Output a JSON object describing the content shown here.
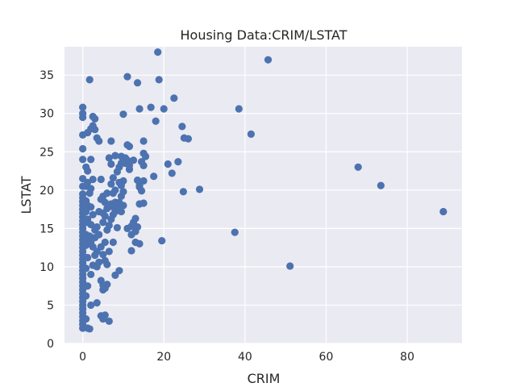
{
  "chart_data": {
    "type": "scatter",
    "title": "Housing Data:CRIM/LSTAT",
    "xlabel": "CRIM",
    "ylabel": "LSTAT",
    "xlim": [
      -4.5,
      93.5
    ],
    "ylim": [
      0,
      38.7
    ],
    "xticks": [
      0,
      20,
      40,
      60,
      80
    ],
    "yticks": [
      0,
      5,
      10,
      15,
      20,
      25,
      30,
      35
    ],
    "grid": true,
    "colors": {
      "plot_background": "#eaeaf2",
      "grid": "#ffffff",
      "marker": "#4c72b0"
    },
    "points": [
      [
        0.0,
        2.0
      ],
      [
        0.0,
        2.5
      ],
      [
        0.0,
        3.0
      ],
      [
        0.0,
        3.5
      ],
      [
        0.0,
        4.0
      ],
      [
        0.0,
        4.5
      ],
      [
        0.0,
        5.0
      ],
      [
        0.0,
        5.5
      ],
      [
        0.0,
        6.0
      ],
      [
        0.0,
        6.5
      ],
      [
        0.0,
        7.0
      ],
      [
        0.0,
        7.5
      ],
      [
        0.0,
        8.0
      ],
      [
        0.0,
        8.5
      ],
      [
        0.0,
        9.0
      ],
      [
        0.0,
        9.5
      ],
      [
        0.0,
        10.0
      ],
      [
        0.0,
        10.5
      ],
      [
        0.0,
        11.0
      ],
      [
        0.0,
        11.5
      ],
      [
        0.0,
        12.0
      ],
      [
        0.0,
        12.5
      ],
      [
        0.0,
        13.0
      ],
      [
        0.0,
        13.5
      ],
      [
        0.0,
        14.0
      ],
      [
        0.0,
        14.5
      ],
      [
        0.0,
        15.0
      ],
      [
        0.0,
        15.5
      ],
      [
        0.0,
        16.0
      ],
      [
        0.0,
        16.5
      ],
      [
        0.0,
        17.0
      ],
      [
        0.0,
        17.5
      ],
      [
        0.0,
        18.0
      ],
      [
        0.0,
        18.5
      ],
      [
        0.0,
        19.0
      ],
      [
        0.0,
        19.5
      ],
      [
        0.0,
        20.5
      ],
      [
        0.0,
        21.5
      ],
      [
        0.0,
        24.0
      ],
      [
        0.0,
        25.4
      ],
      [
        0.0,
        27.2
      ],
      [
        0.0,
        29.5
      ],
      [
        0.0,
        30.0
      ],
      [
        0.0,
        30.8
      ],
      [
        0.8,
        3.2
      ],
      [
        0.8,
        6.2
      ],
      [
        0.8,
        9.8
      ],
      [
        0.8,
        12.8
      ],
      [
        0.8,
        14.2
      ],
      [
        0.8,
        15.8
      ],
      [
        0.8,
        17.2
      ],
      [
        0.8,
        18.6
      ],
      [
        0.8,
        20.5
      ],
      [
        0.8,
        23.0
      ],
      [
        1.2,
        2.0
      ],
      [
        1.2,
        7.5
      ],
      [
        1.2,
        11.2
      ],
      [
        1.2,
        13.6
      ],
      [
        1.2,
        16.2
      ],
      [
        1.2,
        18.0
      ],
      [
        1.2,
        21.0
      ],
      [
        1.2,
        22.5
      ],
      [
        1.2,
        27.5
      ],
      [
        1.7,
        1.9
      ],
      [
        1.7,
        34.4
      ],
      [
        1.7,
        14.0
      ],
      [
        1.7,
        19.6
      ],
      [
        2.0,
        5.0
      ],
      [
        2.0,
        9.0
      ],
      [
        2.0,
        13.2
      ],
      [
        2.0,
        15.5
      ],
      [
        2.0,
        17.8
      ],
      [
        2.0,
        20.2
      ],
      [
        2.0,
        24.0
      ],
      [
        2.0,
        28.0
      ],
      [
        2.5,
        28.4
      ],
      [
        2.5,
        29.6
      ],
      [
        2.5,
        21.4
      ],
      [
        2.5,
        16.8
      ],
      [
        2.5,
        12.6
      ],
      [
        2.5,
        10.2
      ],
      [
        3.0,
        29.3
      ],
      [
        3.0,
        27.9
      ],
      [
        3.0,
        14.8
      ],
      [
        3.0,
        11.5
      ],
      [
        3.0,
        13.8
      ],
      [
        3.5,
        26.8
      ],
      [
        3.5,
        12.0
      ],
      [
        3.5,
        15.2
      ],
      [
        3.5,
        10.0
      ],
      [
        3.5,
        5.3
      ],
      [
        4.0,
        26.4
      ],
      [
        4.0,
        14.2
      ],
      [
        4.0,
        17.2
      ],
      [
        4.0,
        10.6
      ],
      [
        4.5,
        21.4
      ],
      [
        4.5,
        18.8
      ],
      [
        4.5,
        12.6
      ],
      [
        4.5,
        8.2
      ],
      [
        4.5,
        3.6
      ],
      [
        5.0,
        7.6
      ],
      [
        5.0,
        7.0
      ],
      [
        5.0,
        15.8
      ],
      [
        5.0,
        19.2
      ],
      [
        5.0,
        17.0
      ],
      [
        5.0,
        11.6
      ],
      [
        5.0,
        3.2
      ],
      [
        5.5,
        16.6
      ],
      [
        5.5,
        18.4
      ],
      [
        5.5,
        13.2
      ],
      [
        5.5,
        10.8
      ],
      [
        5.5,
        7.2
      ],
      [
        5.5,
        3.7
      ],
      [
        6.0,
        14.8
      ],
      [
        6.0,
        17.6
      ],
      [
        6.0,
        19.6
      ],
      [
        6.0,
        10.3
      ],
      [
        6.0,
        7.7
      ],
      [
        6.5,
        24.2
      ],
      [
        6.5,
        15.4
      ],
      [
        6.5,
        12.0
      ],
      [
        6.5,
        2.9
      ],
      [
        7.0,
        18.2
      ],
      [
        7.0,
        20.8
      ],
      [
        7.0,
        16.2
      ],
      [
        7.0,
        23.4
      ],
      [
        7.0,
        26.4
      ],
      [
        7.5,
        21.6
      ],
      [
        7.5,
        19.6
      ],
      [
        7.5,
        17.8
      ],
      [
        7.5,
        16.8
      ],
      [
        7.5,
        13.2
      ],
      [
        8.0,
        24.5
      ],
      [
        8.0,
        17.2
      ],
      [
        8.0,
        20.0
      ],
      [
        8.0,
        18.4
      ],
      [
        8.0,
        8.9
      ],
      [
        8.5,
        17.6
      ],
      [
        8.5,
        15.1
      ],
      [
        8.5,
        22.4
      ],
      [
        9.0,
        23.0
      ],
      [
        9.0,
        21.0
      ],
      [
        9.0,
        18.4
      ],
      [
        9.0,
        9.5
      ],
      [
        9.5,
        24.4
      ],
      [
        9.5,
        20.6
      ],
      [
        9.5,
        19.2
      ],
      [
        9.5,
        17.2
      ],
      [
        9.5,
        23.5
      ],
      [
        10.0,
        29.9
      ],
      [
        10.0,
        21.2
      ],
      [
        10.0,
        19.8
      ],
      [
        10.0,
        18.0
      ],
      [
        10.5,
        23.5
      ],
      [
        10.5,
        24.2
      ],
      [
        11.0,
        34.8
      ],
      [
        11.0,
        25.9
      ],
      [
        11.0,
        23.9
      ],
      [
        11.0,
        15.0
      ],
      [
        11.5,
        22.7
      ],
      [
        11.5,
        23.2
      ],
      [
        11.5,
        25.7
      ],
      [
        12.0,
        12.1
      ],
      [
        12.0,
        14.2
      ],
      [
        12.0,
        15.3
      ],
      [
        12.5,
        23.9
      ],
      [
        12.5,
        15.8
      ],
      [
        13.0,
        16.3
      ],
      [
        13.0,
        14.6
      ],
      [
        13.0,
        13.2
      ],
      [
        13.5,
        34.0
      ],
      [
        13.5,
        15.2
      ],
      [
        13.5,
        21.3
      ],
      [
        14.0,
        30.6
      ],
      [
        14.0,
        20.4
      ],
      [
        14.0,
        20.6
      ],
      [
        14.0,
        18.2
      ],
      [
        14.0,
        13.0
      ],
      [
        14.5,
        19.9
      ],
      [
        14.5,
        23.7
      ],
      [
        15.0,
        26.4
      ],
      [
        15.0,
        24.8
      ],
      [
        15.0,
        23.2
      ],
      [
        15.0,
        21.2
      ],
      [
        15.0,
        18.3
      ],
      [
        15.5,
        24.4
      ],
      [
        16.8,
        30.8
      ],
      [
        17.5,
        21.8
      ],
      [
        18.0,
        29.0
      ],
      [
        18.5,
        38.0
      ],
      [
        18.8,
        34.4
      ],
      [
        19.5,
        13.4
      ],
      [
        20.0,
        30.6
      ],
      [
        21.0,
        23.4
      ],
      [
        22.0,
        22.2
      ],
      [
        22.5,
        32.0
      ],
      [
        23.5,
        23.7
      ],
      [
        24.5,
        28.3
      ],
      [
        24.8,
        19.8
      ],
      [
        25.0,
        26.8
      ],
      [
        26.0,
        26.7
      ],
      [
        28.8,
        20.1
      ],
      [
        37.5,
        14.5
      ],
      [
        38.5,
        30.6
      ],
      [
        41.5,
        27.3
      ],
      [
        45.7,
        37.0
      ],
      [
        51.1,
        10.1
      ],
      [
        67.9,
        23.0
      ],
      [
        73.5,
        20.6
      ],
      [
        88.9,
        17.2
      ]
    ]
  }
}
